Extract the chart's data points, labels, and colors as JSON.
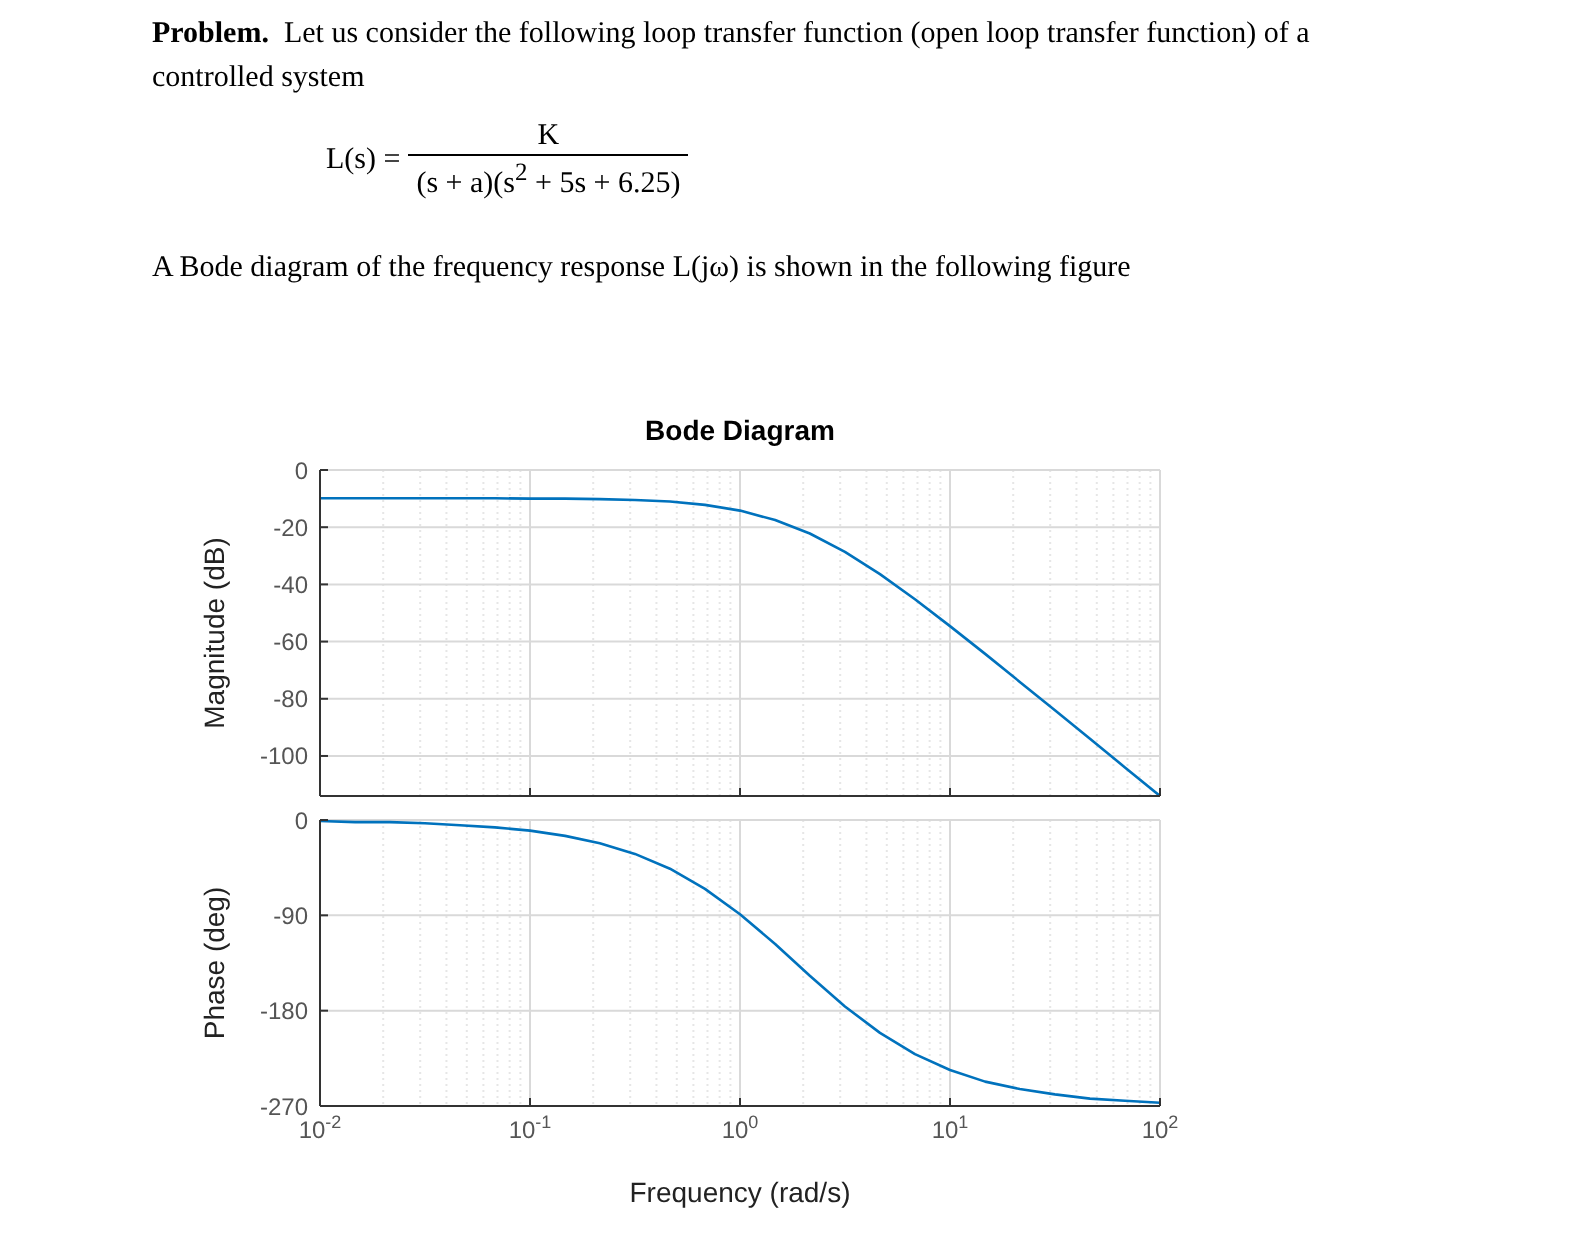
{
  "chart_data": [
    {
      "type": "line",
      "title": "Bode Diagram",
      "ylabel": "Magnitude (dB)",
      "annotations": [
        "Problem.",
        "Let us consider the following loop transfer function (open loop transfer function) of a controlled system",
        "L(s) =",
        "K",
        "(s + a)(s$^{2}$ + 5s + 6.25)",
        "A Bode diagram of the frequency response  L(jω) is shown in the following figure"
      ],
      "x": [
        0.01,
        0.0147,
        0.0215,
        0.0316,
        0.0464,
        0.0681,
        0.1,
        0.147,
        0.215,
        0.316,
        0.464,
        0.681,
        1,
        1.47,
        2.15,
        3.16,
        4.64,
        6.81,
        10,
        14.7,
        21.5,
        31.6,
        46.4,
        68.1,
        100
      ],
      "series": [
        {
          "color": "#0072bd",
          "values": [
            -9.9,
            -9.9,
            -9.9,
            -9.9,
            -9.9,
            -9.9,
            -10.0,
            -10.0,
            -10.2,
            -10.5,
            -11.0,
            -12.2,
            -14.2,
            -17.5,
            -22.2,
            -28.6,
            -36.4,
            -45.2,
            -54.6,
            -64.3,
            -74.1,
            -84.0,
            -94.0,
            -104.0,
            -114.0
          ]
        }
      ],
      "log": "x",
      "xlim": [
        0.01,
        100
      ],
      "ylim": [
        -114,
        0
      ],
      "xticks": [
        {
          "value": 0.01,
          "label": null
        },
        {
          "value": 0.1,
          "label": null
        },
        {
          "value": 1,
          "label": null
        },
        {
          "value": 10,
          "label": null
        },
        {
          "value": 100,
          "label": null
        }
      ],
      "yticks": [
        0,
        -20,
        -40,
        -60,
        -80,
        -100
      ],
      "tick_labels": "y",
      "grid": true
    },
    {
      "type": "line",
      "xlabel": "Frequency  (rad/s)",
      "ylabel": "Phase (deg)",
      "x": [
        0.01,
        0.0147,
        0.0215,
        0.0316,
        0.0464,
        0.0681,
        0.1,
        0.147,
        0.215,
        0.316,
        0.464,
        0.681,
        1,
        1.47,
        2.15,
        3.16,
        4.64,
        6.81,
        10,
        14.7,
        21.5,
        31.6,
        46.4,
        68.1,
        100
      ],
      "series": [
        {
          "color": "#0072bd",
          "values": [
            -1,
            -2,
            -2,
            -3,
            -5,
            -7,
            -10,
            -15,
            -22,
            -32,
            -46,
            -65,
            -89,
            -117,
            -147,
            -176,
            -201,
            -221,
            -236,
            -247,
            -254,
            -259,
            -263,
            -265,
            -267
          ]
        }
      ],
      "log": "x",
      "xlim": [
        0.01,
        100
      ],
      "ylim": [
        -270,
        0
      ],
      "xticks": [
        {
          "value": 0.01,
          "label": "10$^{-2}$"
        },
        {
          "value": 0.1,
          "label": "10$^{-1}$"
        },
        {
          "value": 1,
          "label": "10$^{0}$"
        },
        {
          "value": 10,
          "label": "10$^{1}$"
        },
        {
          "value": 100,
          "label": "10$^{2}$"
        }
      ],
      "yticks": [
        0,
        -90,
        -180,
        -270
      ],
      "grid": true
    }
  ]
}
